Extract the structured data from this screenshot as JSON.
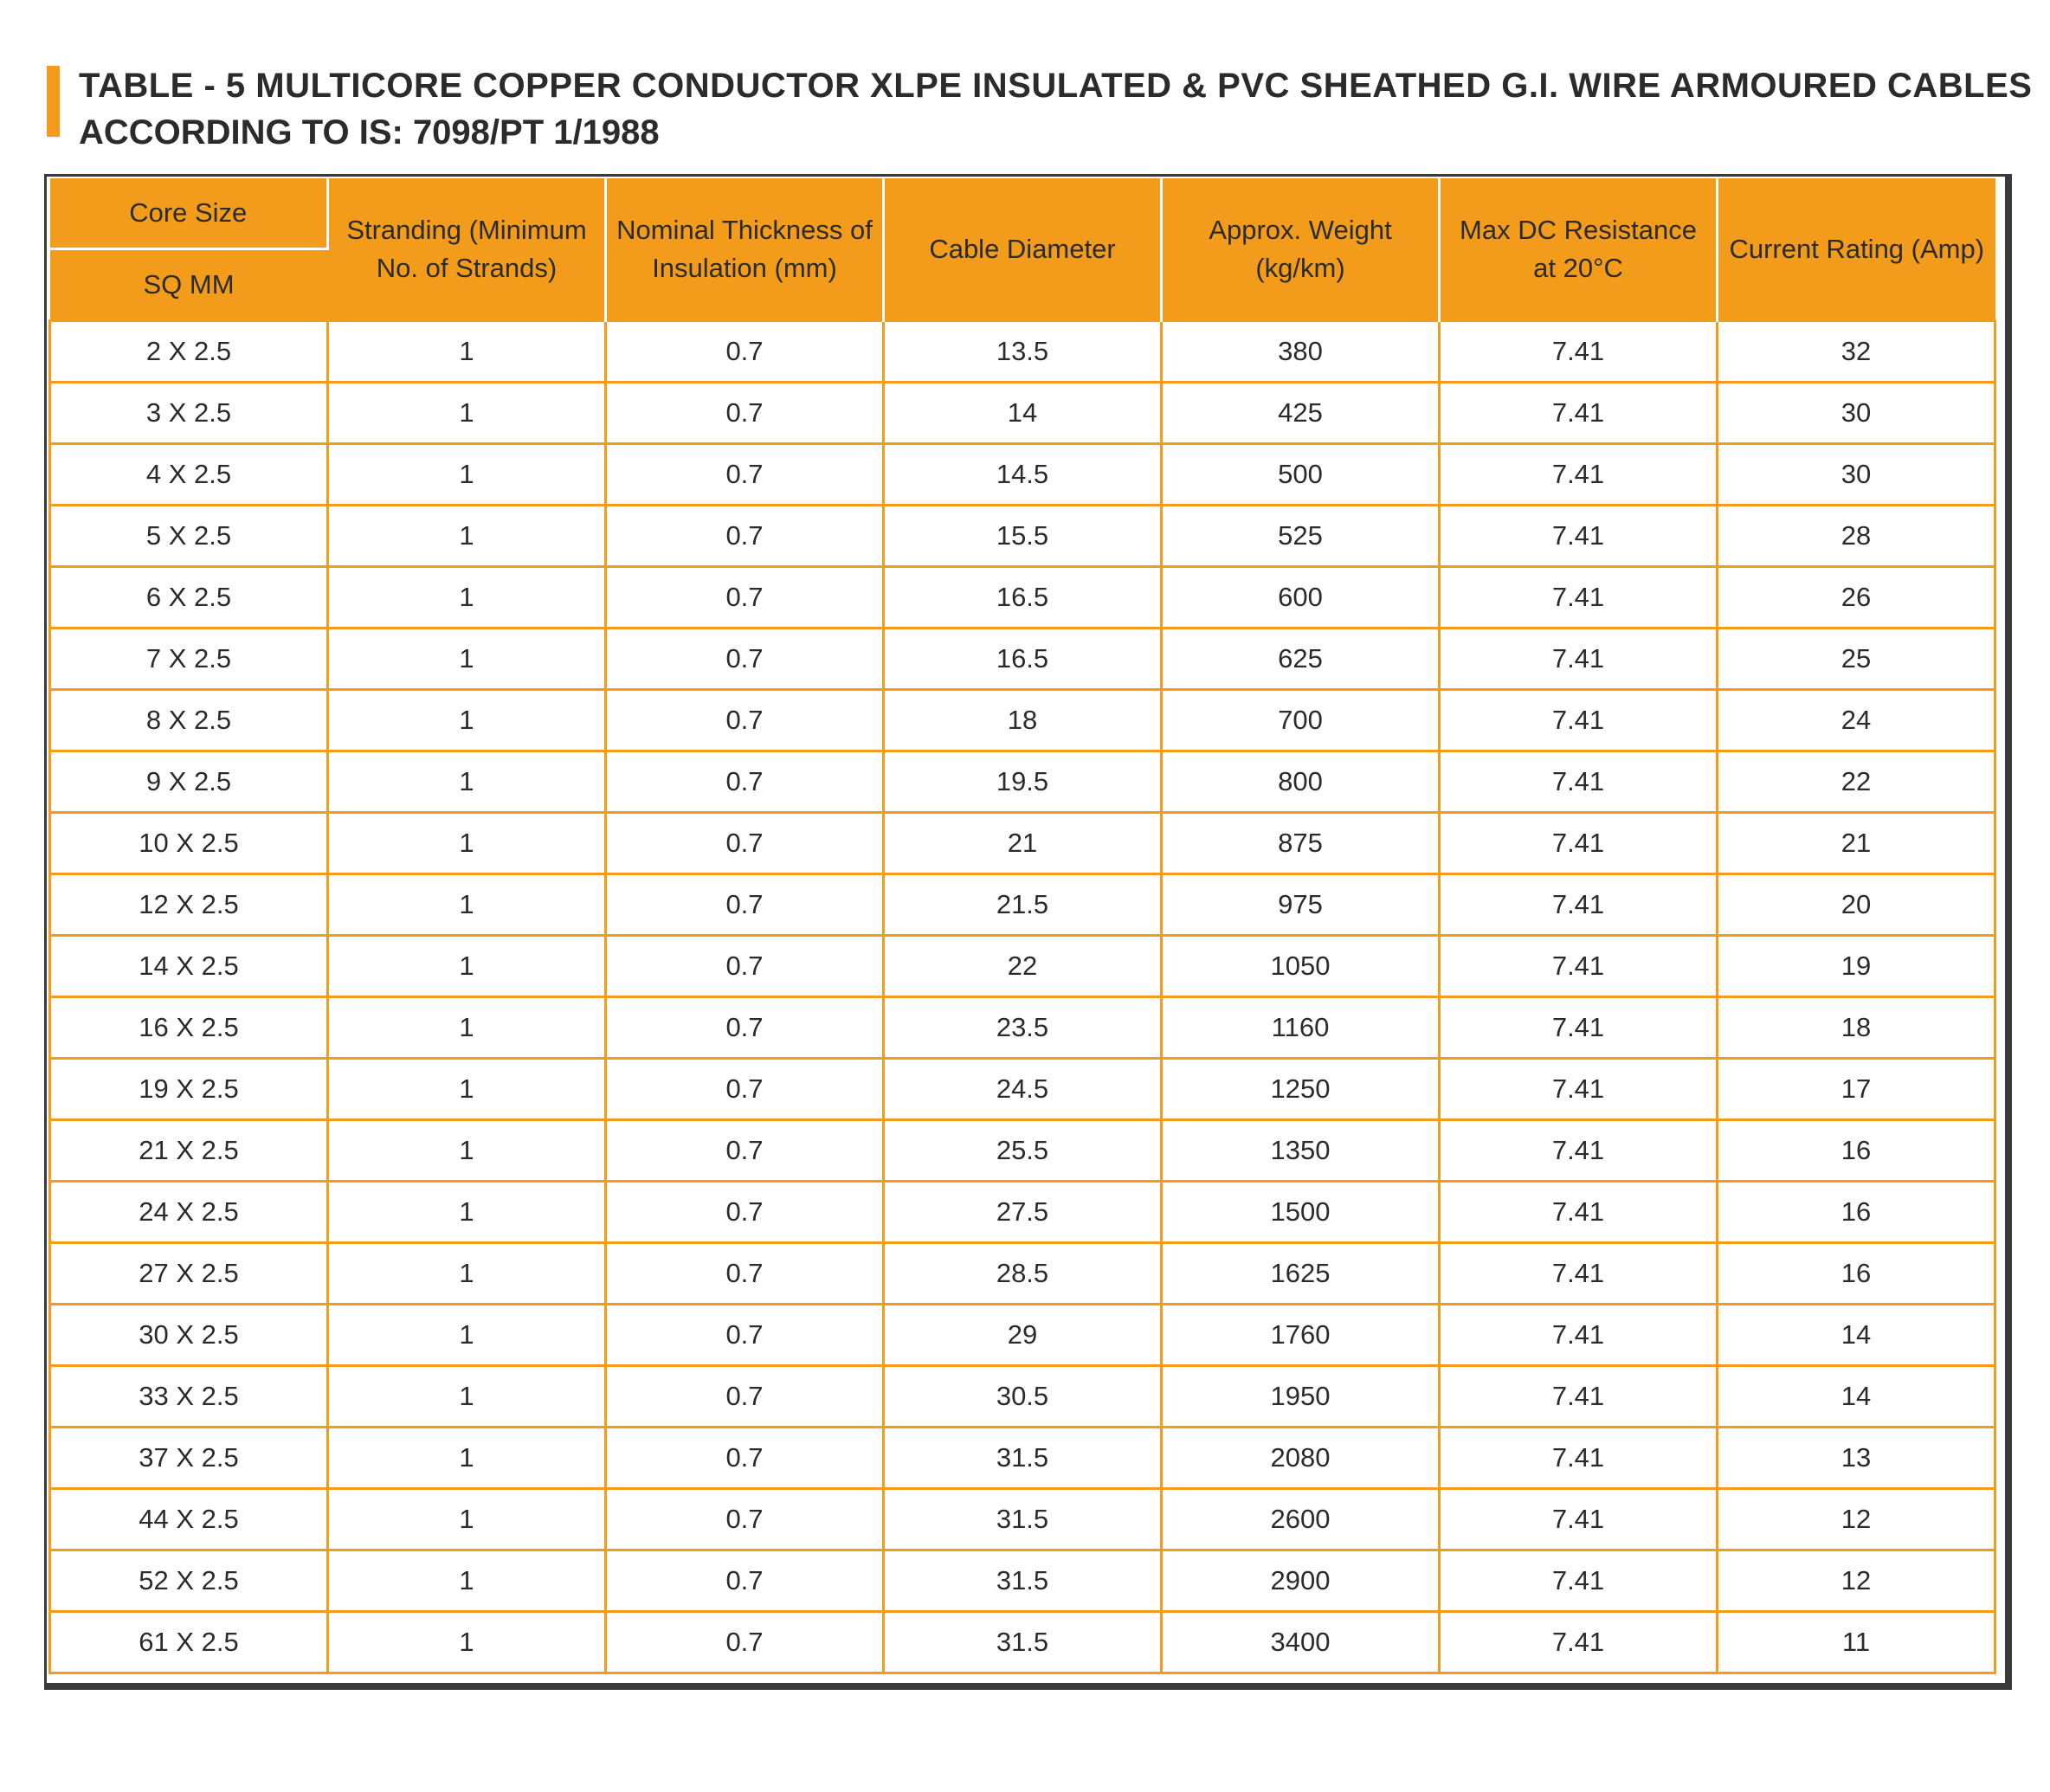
{
  "title": {
    "line1": "TABLE - 5 MULTICORE COPPER CONDUCTOR XLPE INSULATED & PVC SHEATHED G.I. WIRE ARMOURED CABLES",
    "line2": "ACCORDING TO IS: 7098/PT 1/1988"
  },
  "table": {
    "header": {
      "core_size": "Core Size",
      "core_unit": "SQ MM",
      "columns": [
        "Stranding (Minimum No. of Strands)",
        "Nominal Thickness of Insulation (mm)",
        "Cable Diameter",
        "Approx. Weight (kg/km)",
        "Max DC Resistance at 20°C",
        "Current Rating (Amp)"
      ]
    },
    "rows": [
      [
        "2 X 2.5",
        "1",
        "0.7",
        "13.5",
        "380",
        "7.41",
        "32"
      ],
      [
        "3 X 2.5",
        "1",
        "0.7",
        "14",
        "425",
        "7.41",
        "30"
      ],
      [
        "4 X 2.5",
        "1",
        "0.7",
        "14.5",
        "500",
        "7.41",
        "30"
      ],
      [
        "5 X 2.5",
        "1",
        "0.7",
        "15.5",
        "525",
        "7.41",
        "28"
      ],
      [
        "6 X 2.5",
        "1",
        "0.7",
        "16.5",
        "600",
        "7.41",
        "26"
      ],
      [
        "7 X 2.5",
        "1",
        "0.7",
        "16.5",
        "625",
        "7.41",
        "25"
      ],
      [
        "8 X 2.5",
        "1",
        "0.7",
        "18",
        "700",
        "7.41",
        "24"
      ],
      [
        "9 X 2.5",
        "1",
        "0.7",
        "19.5",
        "800",
        "7.41",
        "22"
      ],
      [
        "10 X 2.5",
        "1",
        "0.7",
        "21",
        "875",
        "7.41",
        "21"
      ],
      [
        "12 X 2.5",
        "1",
        "0.7",
        "21.5",
        "975",
        "7.41",
        "20"
      ],
      [
        "14 X 2.5",
        "1",
        "0.7",
        "22",
        "1050",
        "7.41",
        "19"
      ],
      [
        "16 X 2.5",
        "1",
        "0.7",
        "23.5",
        "1160",
        "7.41",
        "18"
      ],
      [
        "19 X 2.5",
        "1",
        "0.7",
        "24.5",
        "1250",
        "7.41",
        "17"
      ],
      [
        "21 X 2.5",
        "1",
        "0.7",
        "25.5",
        "1350",
        "7.41",
        "16"
      ],
      [
        "24 X 2.5",
        "1",
        "0.7",
        "27.5",
        "1500",
        "7.41",
        "16"
      ],
      [
        "27 X 2.5",
        "1",
        "0.7",
        "28.5",
        "1625",
        "7.41",
        "16"
      ],
      [
        "30 X 2.5",
        "1",
        "0.7",
        "29",
        "1760",
        "7.41",
        "14"
      ],
      [
        "33 X 2.5",
        "1",
        "0.7",
        "30.5",
        "1950",
        "7.41",
        "14"
      ],
      [
        "37 X 2.5",
        "1",
        "0.7",
        "31.5",
        "2080",
        "7.41",
        "13"
      ],
      [
        "44 X 2.5",
        "1",
        "0.7",
        "31.5",
        "2600",
        "7.41",
        "12"
      ],
      [
        "52 X 2.5",
        "1",
        "0.7",
        "31.5",
        "2900",
        "7.41",
        "12"
      ],
      [
        "61 X 2.5",
        "1",
        "0.7",
        "31.5",
        "3400",
        "7.41",
        "11"
      ]
    ]
  }
}
